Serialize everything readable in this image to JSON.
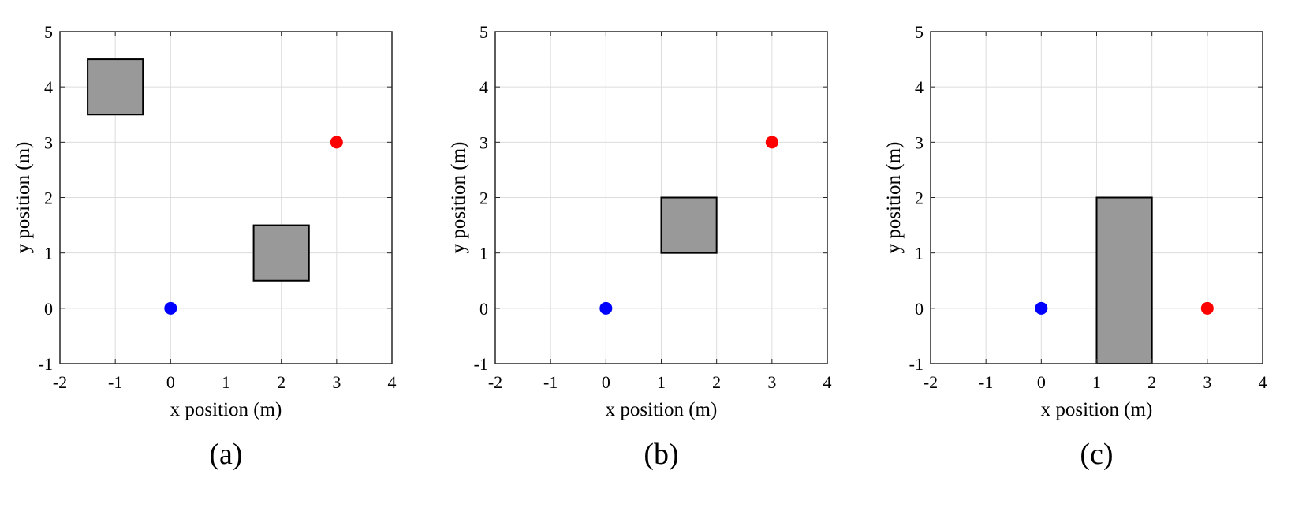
{
  "figure": {
    "colors": {
      "start": "#0000ff",
      "goal": "#ff0000",
      "obstacle_fill": "#999999",
      "obstacle_edge": "#000000",
      "grid": "#dcdcdc"
    }
  },
  "chart_data": [
    {
      "type": "scatter",
      "caption": "(a)",
      "xlabel": "x position (m)",
      "ylabel": "y position (m)",
      "xlim": [
        -2,
        4
      ],
      "ylim": [
        -1,
        5
      ],
      "xticks": [
        "-2",
        "-1",
        "0",
        "1",
        "2",
        "3",
        "4"
      ],
      "yticks": [
        "-1",
        "0",
        "1",
        "2",
        "3",
        "4",
        "5"
      ],
      "grid": true,
      "points": [
        {
          "x": 0,
          "y": 0,
          "color": "#0000ff"
        },
        {
          "x": 3,
          "y": 3,
          "color": "#ff0000"
        }
      ],
      "obstacles": [
        {
          "x0": -1.5,
          "y0": 3.5,
          "x1": -0.5,
          "y1": 4.5
        },
        {
          "x0": 1.5,
          "y0": 0.5,
          "x1": 2.5,
          "y1": 1.5
        }
      ]
    },
    {
      "type": "scatter",
      "caption": "(b)",
      "xlabel": "x position (m)",
      "ylabel": "y position (m)",
      "xlim": [
        -2,
        4
      ],
      "ylim": [
        -1,
        5
      ],
      "xticks": [
        "-2",
        "-1",
        "0",
        "1",
        "2",
        "3",
        "4"
      ],
      "yticks": [
        "-1",
        "0",
        "1",
        "2",
        "3",
        "4",
        "5"
      ],
      "grid": true,
      "points": [
        {
          "x": 0,
          "y": 0,
          "color": "#0000ff"
        },
        {
          "x": 3,
          "y": 3,
          "color": "#ff0000"
        }
      ],
      "obstacles": [
        {
          "x0": 1,
          "y0": 1,
          "x1": 2,
          "y1": 2
        }
      ]
    },
    {
      "type": "scatter",
      "caption": "(c)",
      "xlabel": "x position (m)",
      "ylabel": "y position (m)",
      "xlim": [
        -2,
        4
      ],
      "ylim": [
        -1,
        5
      ],
      "xticks": [
        "-2",
        "-1",
        "0",
        "1",
        "2",
        "3",
        "4"
      ],
      "yticks": [
        "-1",
        "0",
        "1",
        "2",
        "3",
        "4",
        "5"
      ],
      "grid": true,
      "points": [
        {
          "x": 0,
          "y": 0,
          "color": "#0000ff"
        },
        {
          "x": 3,
          "y": 0,
          "color": "#ff0000"
        }
      ],
      "obstacles": [
        {
          "x0": 1,
          "y0": -1,
          "x1": 2,
          "y1": 2
        }
      ]
    }
  ]
}
